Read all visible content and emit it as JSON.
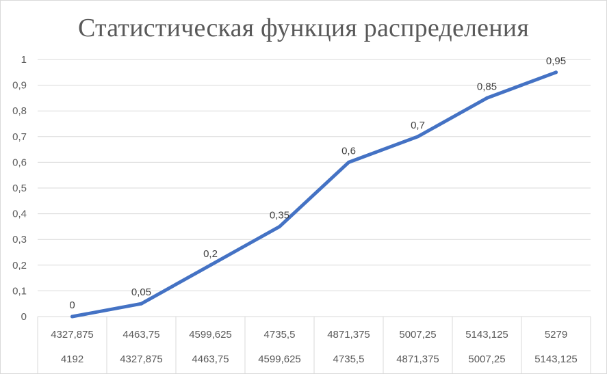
{
  "chart_data": {
    "type": "line",
    "title": "Статистическая функция распределения",
    "categories": [
      {
        "upper": "4327,875",
        "lower": "4192"
      },
      {
        "upper": "4463,75",
        "lower": "4327,875"
      },
      {
        "upper": "4599,625",
        "lower": "4463,75"
      },
      {
        "upper": "4735,5",
        "lower": "4599,625"
      },
      {
        "upper": "4871,375",
        "lower": "4735,5"
      },
      {
        "upper": "5007,25",
        "lower": "4871,375"
      },
      {
        "upper": "5143,125",
        "lower": "5007,25"
      },
      {
        "upper": "5279",
        "lower": "5143,125"
      }
    ],
    "series": [
      {
        "values": [
          0,
          0.05,
          0.2,
          0.35,
          0.6,
          0.7,
          0.85,
          0.95
        ],
        "labels": [
          "0",
          "0,05",
          "0,2",
          "0,35",
          "0,6",
          "0,7",
          "0,85",
          "0,95"
        ],
        "color": "#4472c4"
      }
    ],
    "ylim": [
      0,
      1
    ],
    "yticks": [
      {
        "value": 0,
        "label": "0"
      },
      {
        "value": 0.1,
        "label": "0,1"
      },
      {
        "value": 0.2,
        "label": "0,2"
      },
      {
        "value": 0.3,
        "label": "0,3"
      },
      {
        "value": 0.4,
        "label": "0,4"
      },
      {
        "value": 0.5,
        "label": "0,5"
      },
      {
        "value": 0.6,
        "label": "0,6"
      },
      {
        "value": 0.7,
        "label": "0,7"
      },
      {
        "value": 0.8,
        "label": "0,8"
      },
      {
        "value": 0.9,
        "label": "0,9"
      },
      {
        "value": 1,
        "label": "1"
      }
    ],
    "grid": true,
    "gridColor": "#d9d9d9",
    "xlabel": "",
    "ylabel": ""
  }
}
